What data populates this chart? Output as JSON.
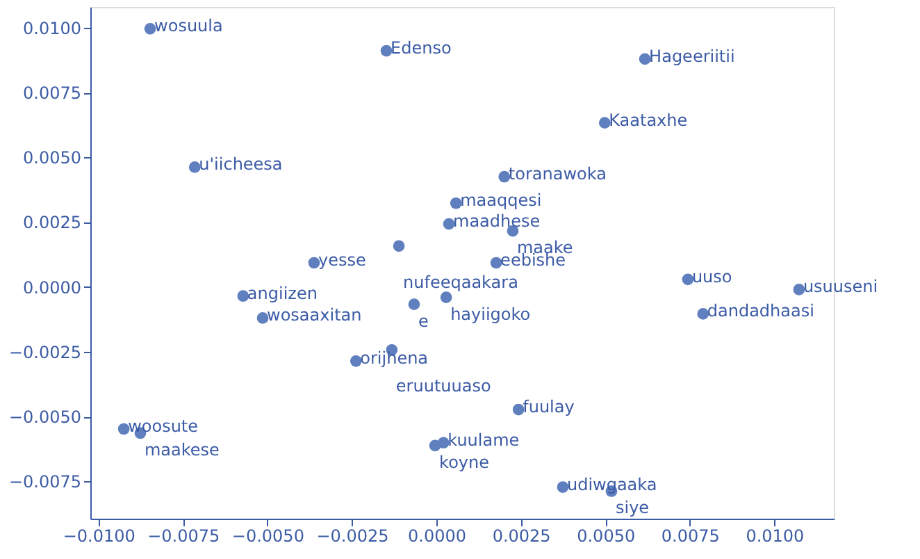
{
  "chart_data": {
    "type": "scatter",
    "x": [
      -0.00847,
      -0.00148,
      0.00617,
      0.00498,
      -0.00715,
      0.00201,
      0.00058,
      0.00037,
      0.00226,
      -0.00111,
      0.00177,
      -0.00362,
      0.00744,
      0.01073,
      0.00789,
      0.00029,
      -0.00066,
      -0.00572,
      -0.00514,
      -0.00238,
      -0.00132,
      0.00243,
      -0.00925,
      -0.00876,
      0.00021,
      -4e-05,
      0.00374,
      0.00518
    ],
    "series": [
      {
        "color": "#5f7fbf",
        "values": [
          0.00996,
          0.00911,
          0.00879,
          0.00633,
          0.00462,
          0.00425,
          0.00323,
          0.00243,
          0.00216,
          0.00158,
          0.00093,
          0.00093,
          0.00029,
          -0.0001,
          -0.00104,
          -0.0004,
          -0.00067,
          -0.00035,
          -0.0012,
          -0.00286,
          -0.00243,
          -0.00473,
          -0.00548,
          -0.00564,
          -0.00601,
          -0.00612,
          -0.00772,
          -0.00788
        ]
      }
    ],
    "annotations": [
      {
        "text": "wosuula",
        "x": -0.00847,
        "y": 0.00996
      },
      {
        "text": "Edenso",
        "x": -0.00148,
        "y": 0.00911
      },
      {
        "text": "Hageeriitii",
        "x": 0.00617,
        "y": 0.00879
      },
      {
        "text": "Kaataxhe",
        "x": 0.00498,
        "y": 0.00633
      },
      {
        "text": "u'iicheesa",
        "x": -0.00715,
        "y": 0.00462
      },
      {
        "text": "toranawoka",
        "x": 0.00201,
        "y": 0.00425
      },
      {
        "text": "maaqqesi",
        "x": 0.00058,
        "y": 0.00323
      },
      {
        "text": "maadhese",
        "x": 0.00037,
        "y": 0.00243
      },
      {
        "text": "maake",
        "x": 0.00226,
        "y": 0.00216
      },
      {
        "text": "nufeeqaakara",
        "x": -0.00111,
        "y": 0.00158
      },
      {
        "text": "eebishe",
        "x": 0.00177,
        "y": 0.00093
      },
      {
        "text": "yesse",
        "x": -0.00362,
        "y": 0.00093
      },
      {
        "text": "uuso",
        "x": 0.00744,
        "y": 0.00029
      },
      {
        "text": "usuuseni",
        "x": 0.01073,
        "y": -0.0001
      },
      {
        "text": "dandadhaasi",
        "x": 0.00789,
        "y": -0.00104
      },
      {
        "text": "hayiigoko",
        "x": 0.00029,
        "y": -0.0004
      },
      {
        "text": "e",
        "x": -0.00066,
        "y": -0.00067
      },
      {
        "text": "angiizen",
        "x": -0.00572,
        "y": -0.00035
      },
      {
        "text": "wosaaxitan",
        "x": -0.00514,
        "y": -0.0012
      },
      {
        "text": "orijhena",
        "x": -0.00238,
        "y": -0.00286
      },
      {
        "text": "eruutuuaso",
        "x": -0.00132,
        "y": -0.00243
      },
      {
        "text": "fuulay",
        "x": 0.00243,
        "y": -0.00473
      },
      {
        "text": "woosute",
        "x": -0.00925,
        "y": -0.00548
      },
      {
        "text": "maakese",
        "x": -0.00876,
        "y": -0.00564
      },
      {
        "text": "kuulame",
        "x": 0.00021,
        "y": -0.00601
      },
      {
        "text": "koyne",
        "x": -4e-05,
        "y": -0.00612
      },
      {
        "text": "udiwgaaka",
        "x": 0.00374,
        "y": -0.00772
      },
      {
        "text": "siye",
        "x": 0.00518,
        "y": -0.00788
      }
    ],
    "xlim": [
      -0.01024,
      0.01176
    ],
    "ylim": [
      -0.00894,
      0.0108
    ],
    "xticks": [
      {
        "value": -0.01,
        "label": "−0.0100"
      },
      {
        "value": -0.0075,
        "label": "−0.0075"
      },
      {
        "value": -0.005,
        "label": "−0.0050"
      },
      {
        "value": -0.0025,
        "label": "−0.0025"
      },
      {
        "value": 0,
        "label": "0.0000"
      },
      {
        "value": 0.0025,
        "label": "0.0025"
      },
      {
        "value": 0.005,
        "label": "0.0050"
      },
      {
        "value": 0.0075,
        "label": "0.0075"
      },
      {
        "value": 0.01,
        "label": "0.0100"
      }
    ],
    "yticks": [
      {
        "value": -0.0075,
        "label": "−0.0075"
      },
      {
        "value": -0.005,
        "label": "−0.0050"
      },
      {
        "value": -0.0025,
        "label": "−0.0025"
      },
      {
        "value": 0,
        "label": "0.0000"
      },
      {
        "value": 0.0025,
        "label": "0.0025"
      },
      {
        "value": 0.005,
        "label": "0.0050"
      },
      {
        "value": 0.0075,
        "label": "0.0075"
      },
      {
        "value": 0.01,
        "label": "0.0100"
      }
    ],
    "marker": "circle",
    "grid": false
  }
}
